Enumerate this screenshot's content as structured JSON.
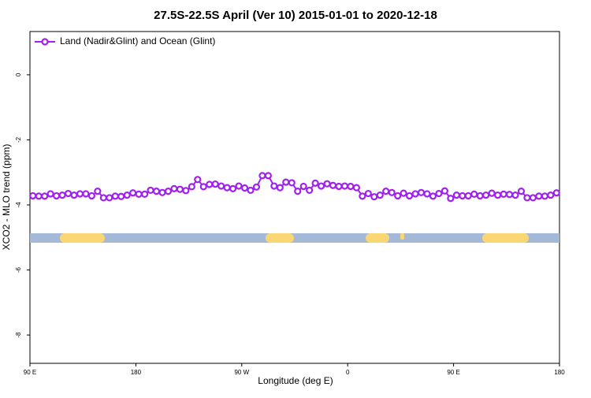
{
  "chart_data": {
    "type": "line",
    "title": "27.5S-22.5S April (Ver 10)   2015-01-01 to 2020-12-18",
    "x_label": "Longitude (deg E)",
    "y_label": "XCO2 - MLO trend (ppm)",
    "x": [
      92.5,
      97.5,
      102.5,
      107.5,
      112.5,
      117.5,
      122.5,
      127.5,
      132.5,
      137.5,
      142.5,
      147.5,
      152.5,
      157.5,
      162.5,
      167.5,
      172.5,
      177.5,
      182.5,
      187.5,
      192.5,
      197.5,
      202.5,
      207.5,
      212.5,
      217.5,
      222.5,
      227.5,
      232.5,
      237.5,
      242.5,
      247.5,
      252.5,
      257.5,
      262.5,
      267.5,
      272.5,
      277.5,
      282.5,
      287.5,
      292.5,
      297.5,
      302.5,
      307.5,
      312.5,
      317.5,
      322.5,
      327.5,
      332.5,
      337.5,
      342.5,
      347.5,
      352.5,
      357.5,
      362.5,
      367.5,
      372.5,
      377.5,
      382.5,
      387.5,
      392.5,
      397.5,
      402.5,
      407.5,
      412.5,
      417.5,
      422.5,
      427.5,
      432.5,
      437.5,
      442.5,
      447.5,
      452.5,
      457.5,
      462.5,
      467.5,
      472.5,
      477.5,
      482.5,
      487.5,
      492.5,
      497.5,
      502.5,
      507.5,
      512.5,
      517.5,
      522.5,
      527.5,
      532.5,
      537.5
    ],
    "series": [
      {
        "name": "Land (Nadir&Glint) and Ocean (Glint)",
        "color": "#a020f0",
        "values": [
          -3.72,
          -3.73,
          -3.73,
          -3.66,
          -3.72,
          -3.7,
          -3.65,
          -3.7,
          -3.66,
          -3.66,
          -3.72,
          -3.58,
          -3.78,
          -3.78,
          -3.73,
          -3.74,
          -3.7,
          -3.63,
          -3.67,
          -3.67,
          -3.55,
          -3.58,
          -3.62,
          -3.58,
          -3.5,
          -3.52,
          -3.56,
          -3.44,
          -3.22,
          -3.44,
          -3.37,
          -3.36,
          -3.42,
          -3.47,
          -3.5,
          -3.42,
          -3.48,
          -3.55,
          -3.45,
          -3.1,
          -3.1,
          -3.42,
          -3.47,
          -3.3,
          -3.32,
          -3.58,
          -3.43,
          -3.55,
          -3.33,
          -3.42,
          -3.35,
          -3.4,
          -3.43,
          -3.42,
          -3.43,
          -3.47,
          -3.73,
          -3.65,
          -3.75,
          -3.7,
          -3.58,
          -3.62,
          -3.72,
          -3.64,
          -3.72,
          -3.66,
          -3.62,
          -3.66,
          -3.73,
          -3.65,
          -3.57,
          -3.8,
          -3.7,
          -3.72,
          -3.72,
          -3.67,
          -3.72,
          -3.7,
          -3.64,
          -3.7,
          -3.67,
          -3.68,
          -3.7,
          -3.58,
          -3.78,
          -3.78,
          -3.73,
          -3.73,
          -3.7,
          -3.63
        ]
      }
    ],
    "xlim": [
      90,
      540
    ],
    "xticks": [
      {
        "value": 90,
        "label": "90 E"
      },
      180,
      {
        "value": 270,
        "label": "90 W"
      },
      {
        "value": 360,
        "label": "0"
      },
      {
        "value": 450,
        "label": "90 E"
      },
      {
        "value": 540,
        "label": "180"
      }
    ],
    "ylim": [
      -8.87,
      1.33
    ],
    "yticks": [
      0,
      -2,
      -4,
      -6,
      -8
    ],
    "legend": "top-left"
  }
}
